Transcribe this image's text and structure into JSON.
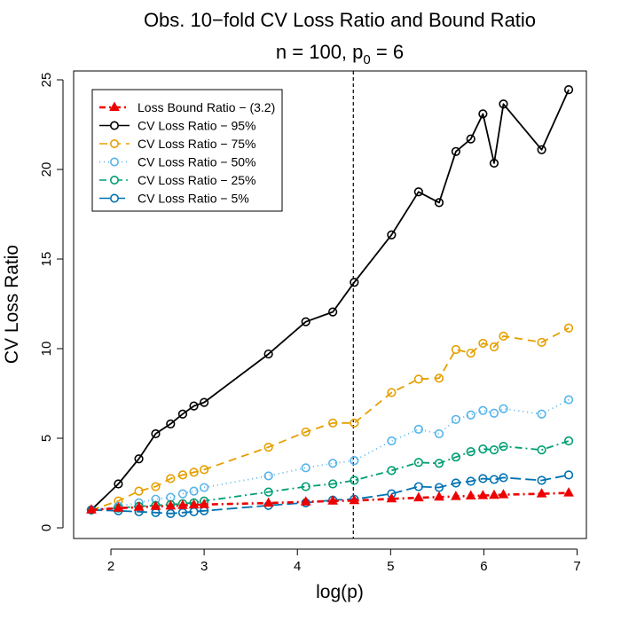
{
  "chart_data": {
    "type": "line",
    "title": "Obs. 10−fold CV Loss Ratio and Bound Ratio",
    "subtitle": {
      "prefix": "n = 100, p",
      "subscript": "0",
      "suffix": " = 6"
    },
    "xlabel": "log(p)",
    "ylabel": "CV Loss Ratio",
    "xlim": [
      1.8,
      6.9
    ],
    "ylim": [
      0,
      25
    ],
    "xticks": [
      2,
      3,
      4,
      5,
      6,
      7
    ],
    "yticks": [
      0,
      5,
      10,
      15,
      20,
      25
    ],
    "vline": 4.6,
    "legend_position": "top-left",
    "x": [
      1.79,
      2.08,
      2.3,
      2.48,
      2.64,
      2.77,
      2.89,
      3.0,
      3.69,
      4.09,
      4.38,
      4.61,
      5.01,
      5.3,
      5.52,
      5.7,
      5.86,
      5.99,
      6.11,
      6.21,
      6.62,
      6.91
    ],
    "series": [
      {
        "name": "Loss Bound Ratio − (3.2)",
        "color": "#ee0000",
        "dash": "7,4,2,4",
        "marker": "filled-triangle",
        "values": [
          1.0,
          1.1,
          1.15,
          1.2,
          1.22,
          1.25,
          1.28,
          1.3,
          1.38,
          1.45,
          1.5,
          1.52,
          1.62,
          1.68,
          1.72,
          1.75,
          1.78,
          1.8,
          1.82,
          1.85,
          1.9,
          1.95
        ]
      },
      {
        "name": "CV Loss Ratio − 95%",
        "color": "#000000",
        "dash": "",
        "marker": "open-circle",
        "values": [
          1.0,
          2.45,
          3.85,
          5.25,
          5.8,
          6.35,
          6.8,
          7.0,
          9.7,
          11.5,
          12.05,
          13.7,
          16.35,
          18.75,
          18.15,
          21.0,
          21.7,
          23.1,
          20.35,
          23.65,
          21.1,
          24.45
        ]
      },
      {
        "name": "CV Loss Ratio − 75%",
        "color": "#e69f00",
        "dash": "9,6",
        "marker": "open-circle",
        "values": [
          1.0,
          1.5,
          2.05,
          2.3,
          2.75,
          2.95,
          3.1,
          3.25,
          4.5,
          5.35,
          5.85,
          5.85,
          7.55,
          8.3,
          8.35,
          9.95,
          9.75,
          10.3,
          10.1,
          10.7,
          10.35,
          11.15
        ]
      },
      {
        "name": "CV Loss Ratio − 50%",
        "color": "#56b4e9",
        "dash": "1,4",
        "marker": "open-circle",
        "values": [
          1.0,
          1.2,
          1.4,
          1.6,
          1.7,
          1.9,
          2.05,
          2.25,
          2.9,
          3.35,
          3.6,
          3.75,
          4.85,
          5.5,
          5.25,
          6.05,
          6.3,
          6.55,
          6.4,
          6.65,
          6.35,
          7.15
        ]
      },
      {
        "name": "CV Loss Ratio − 25%",
        "color": "#009e73",
        "dash": "8,4,2,4",
        "marker": "open-circle",
        "values": [
          1.0,
          1.1,
          1.2,
          1.25,
          1.3,
          1.35,
          1.4,
          1.5,
          2.0,
          2.3,
          2.45,
          2.65,
          3.2,
          3.65,
          3.6,
          3.95,
          4.25,
          4.4,
          4.35,
          4.55,
          4.35,
          4.85
        ]
      },
      {
        "name": "CV Loss Ratio − 5%",
        "color": "#0072b2",
        "dash": "12,5",
        "marker": "open-circle",
        "values": [
          1.0,
          0.95,
          0.9,
          0.85,
          0.8,
          0.85,
          0.9,
          0.95,
          1.25,
          1.4,
          1.55,
          1.6,
          1.9,
          2.3,
          2.25,
          2.5,
          2.6,
          2.75,
          2.7,
          2.8,
          2.65,
          2.95
        ]
      }
    ]
  }
}
